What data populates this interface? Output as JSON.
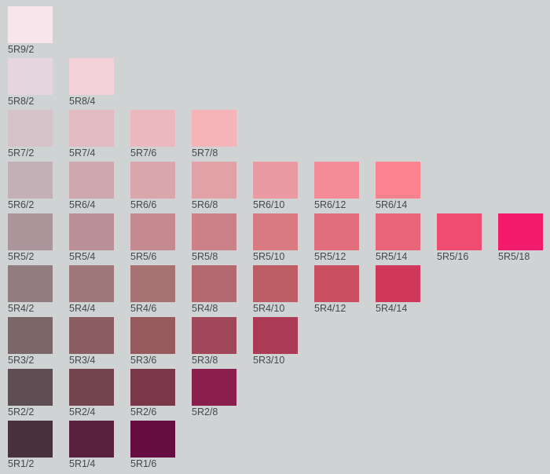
{
  "rows": [
    {
      "value": 9,
      "chips": [
        {
          "label": "5R9/2",
          "color": "#f7e6ec"
        }
      ]
    },
    {
      "value": 8,
      "chips": [
        {
          "label": "5R8/2",
          "color": "#e4d6dc"
        },
        {
          "label": "5R8/4",
          "color": "#f2d2d8"
        }
      ]
    },
    {
      "value": 7,
      "chips": [
        {
          "label": "5R7/2",
          "color": "#d6c3ca"
        },
        {
          "label": "5R7/4",
          "color": "#e2bac2"
        },
        {
          "label": "5R7/6",
          "color": "#ecb8bf"
        },
        {
          "label": "5R7/8",
          "color": "#f6b4b8"
        }
      ]
    },
    {
      "value": 6,
      "chips": [
        {
          "label": "5R6/2",
          "color": "#c2b0b6"
        },
        {
          "label": "5R6/4",
          "color": "#cfa8ae"
        },
        {
          "label": "5R6/6",
          "color": "#d9a6ab"
        },
        {
          "label": "5R6/8",
          "color": "#e2a0a7"
        },
        {
          "label": "5R6/10",
          "color": "#ea9aa2"
        },
        {
          "label": "5R6/12",
          "color": "#f48c98"
        },
        {
          "label": "5R6/14",
          "color": "#fc8290"
        }
      ]
    },
    {
      "value": 5,
      "chips": [
        {
          "label": "5R5/2",
          "color": "#ab959b"
        },
        {
          "label": "5R5/4",
          "color": "#bb8f96"
        },
        {
          "label": "5R5/6",
          "color": "#c48a8f"
        },
        {
          "label": "5R5/8",
          "color": "#cc8088"
        },
        {
          "label": "5R5/10",
          "color": "#d87a80"
        },
        {
          "label": "5R5/12",
          "color": "#e06e7b"
        },
        {
          "label": "5R5/14",
          "color": "#e86677"
        },
        {
          "label": "5R5/16",
          "color": "#ef4c72"
        },
        {
          "label": "5R5/18",
          "color": "#f21c6a"
        }
      ]
    },
    {
      "value": 4,
      "chips": [
        {
          "label": "5R4/2",
          "color": "#947d80"
        },
        {
          "label": "5R4/4",
          "color": "#a07778"
        },
        {
          "label": "5R4/6",
          "color": "#a87272"
        },
        {
          "label": "5R4/8",
          "color": "#b46870"
        },
        {
          "label": "5R4/10",
          "color": "#bc5e64"
        },
        {
          "label": "5R4/12",
          "color": "#c8505f"
        },
        {
          "label": "5R4/14",
          "color": "#d0385c"
        }
      ]
    },
    {
      "value": 3,
      "chips": [
        {
          "label": "5R3/2",
          "color": "#7b6668"
        },
        {
          "label": "5R3/4",
          "color": "#8a5d62"
        },
        {
          "label": "5R3/6",
          "color": "#965a5d"
        },
        {
          "label": "5R3/8",
          "color": "#a0485a"
        },
        {
          "label": "5R3/10",
          "color": "#ab3a54"
        }
      ]
    },
    {
      "value": 2,
      "chips": [
        {
          "label": "5R2/2",
          "color": "#5e4e54"
        },
        {
          "label": "5R2/4",
          "color": "#73434e"
        },
        {
          "label": "5R2/6",
          "color": "#7b364a"
        },
        {
          "label": "5R2/8",
          "color": "#8a1f4d"
        }
      ]
    },
    {
      "value": 1,
      "chips": [
        {
          "label": "5R1/2",
          "color": "#48313a"
        },
        {
          "label": "5R1/4",
          "color": "#5b2240"
        },
        {
          "label": "5R1/6",
          "color": "#650c40"
        }
      ]
    }
  ]
}
